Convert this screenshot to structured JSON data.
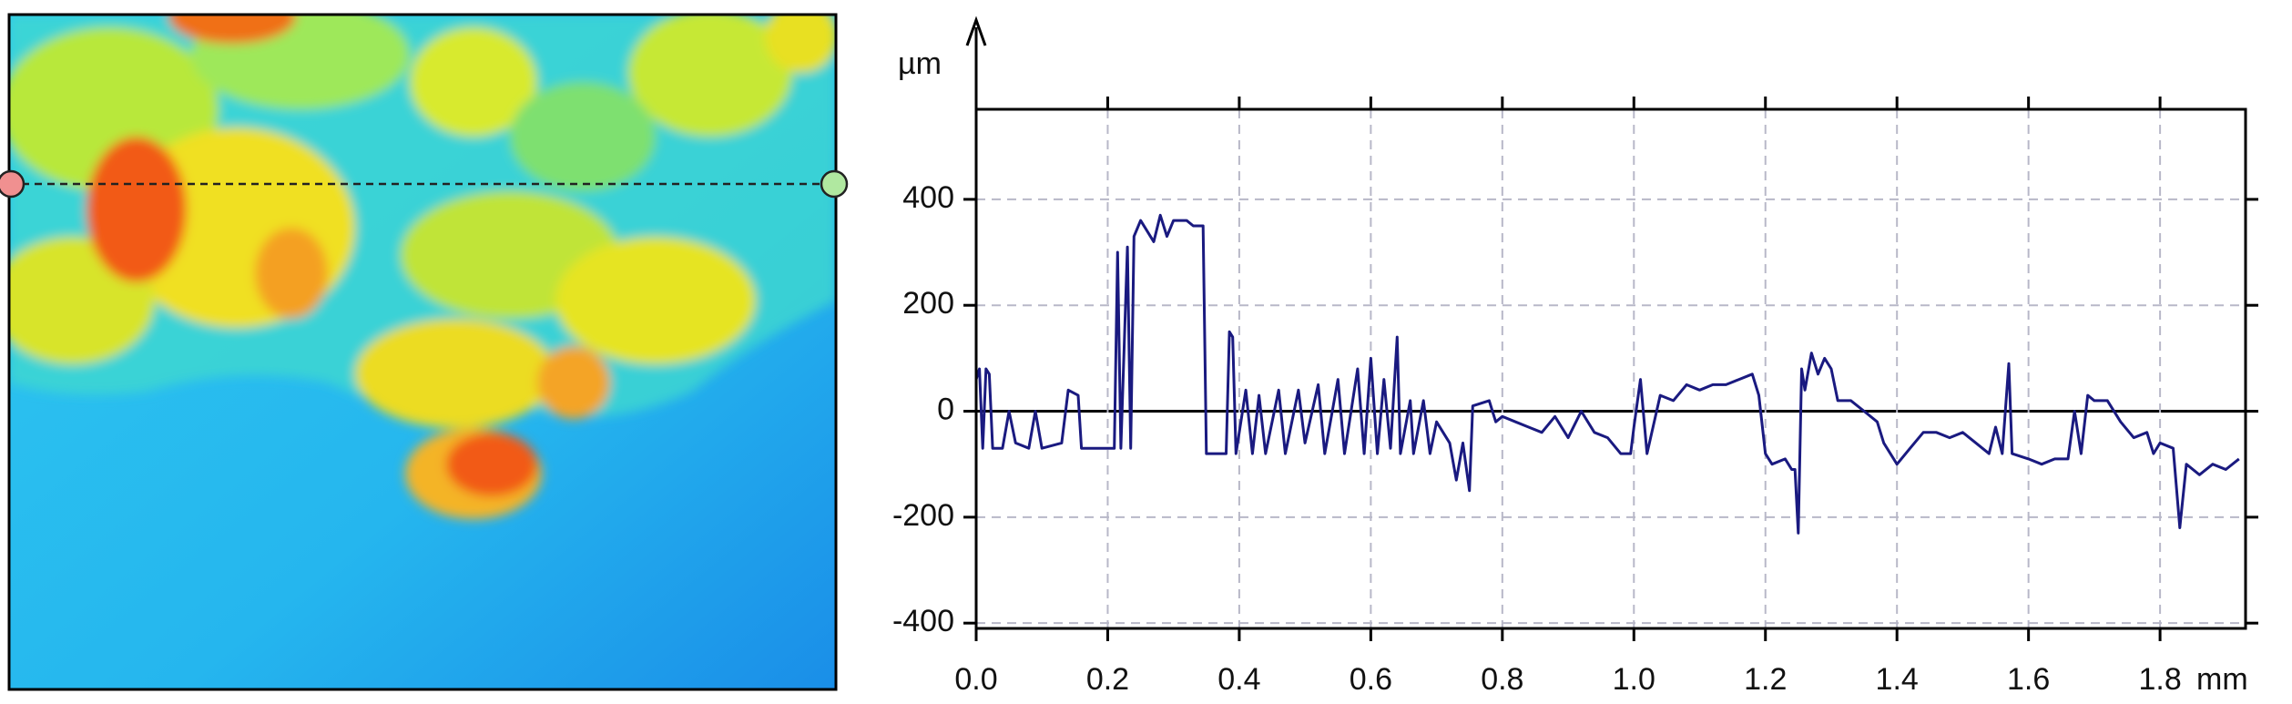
{
  "chart_data": {
    "type": "line",
    "y_label": "µm",
    "x_label": "mm",
    "xlim": [
      0,
      1.93
    ],
    "ylim": [
      -410,
      570
    ],
    "xticks": [
      {
        "value": 0,
        "label": "0.0"
      },
      0.2,
      0.4,
      0.6,
      0.8,
      {
        "value": 1,
        "label": "1.0"
      },
      1.2,
      1.4,
      1.6,
      1.8
    ],
    "yticks": [
      -400,
      -200,
      0,
      200,
      400
    ],
    "grid": true,
    "color": "#1a1a80",
    "x": [
      0,
      0.005,
      0.01,
      0.015,
      0.02,
      0.025,
      0.04,
      0.05,
      0.06,
      0.08,
      0.09,
      0.1,
      0.13,
      0.14,
      0.155,
      0.16,
      0.21,
      0.215,
      0.22,
      0.23,
      0.235,
      0.24,
      0.25,
      0.27,
      0.28,
      0.29,
      0.3,
      0.32,
      0.33,
      0.345,
      0.35,
      0.38,
      0.385,
      0.39,
      0.395,
      0.41,
      0.42,
      0.43,
      0.44,
      0.46,
      0.47,
      0.49,
      0.5,
      0.52,
      0.53,
      0.55,
      0.56,
      0.58,
      0.59,
      0.6,
      0.61,
      0.62,
      0.63,
      0.64,
      0.645,
      0.66,
      0.665,
      0.68,
      0.69,
      0.7,
      0.72,
      0.73,
      0.74,
      0.75,
      0.755,
      0.78,
      0.79,
      0.8,
      0.82,
      0.84,
      0.86,
      0.88,
      0.9,
      0.92,
      0.94,
      0.96,
      0.98,
      0.995,
      1,
      1.01,
      1.02,
      1.04,
      1.06,
      1.08,
      1.1,
      1.12,
      1.14,
      1.16,
      1.18,
      1.19,
      1.2,
      1.21,
      1.23,
      1.24,
      1.245,
      1.25,
      1.255,
      1.26,
      1.27,
      1.28,
      1.29,
      1.3,
      1.31,
      1.33,
      1.35,
      1.37,
      1.38,
      1.4,
      1.42,
      1.44,
      1.46,
      1.48,
      1.5,
      1.52,
      1.54,
      1.55,
      1.56,
      1.57,
      1.575,
      1.6,
      1.62,
      1.64,
      1.66,
      1.67,
      1.68,
      1.69,
      1.7,
      1.72,
      1.74,
      1.76,
      1.78,
      1.79,
      1.8,
      1.82,
      1.83,
      1.84,
      1.86,
      1.88,
      1.9,
      1.92
    ],
    "values": [
      60,
      80,
      -70,
      80,
      70,
      -70,
      -70,
      0,
      -60,
      -70,
      0,
      -70,
      -60,
      40,
      30,
      -70,
      -70,
      300,
      -70,
      310,
      -70,
      330,
      360,
      320,
      370,
      330,
      360,
      360,
      350,
      350,
      -80,
      -80,
      150,
      140,
      -80,
      40,
      -80,
      30,
      -80,
      40,
      -80,
      40,
      -60,
      50,
      -80,
      60,
      -80,
      80,
      -80,
      100,
      -80,
      60,
      -70,
      140,
      -80,
      20,
      -80,
      20,
      -80,
      -20,
      -60,
      -130,
      -60,
      -150,
      10,
      20,
      -20,
      -10,
      -20,
      -30,
      -40,
      -10,
      -50,
      0,
      -40,
      -50,
      -80,
      -80,
      -30,
      60,
      -80,
      30,
      20,
      50,
      40,
      50,
      50,
      60,
      70,
      30,
      -80,
      -100,
      -90,
      -110,
      -110,
      -230,
      80,
      40,
      110,
      70,
      100,
      80,
      20,
      20,
      0,
      -20,
      -60,
      -100,
      -70,
      -40,
      -40,
      -50,
      -40,
      -60,
      -80,
      -30,
      -80,
      90,
      -80,
      -90,
      -100,
      -90,
      -90,
      0,
      -80,
      30,
      20,
      20,
      -20,
      -50,
      -40,
      -80,
      -60,
      -70,
      -220,
      -100,
      -120,
      -100,
      -110,
      -90
    ]
  }
}
